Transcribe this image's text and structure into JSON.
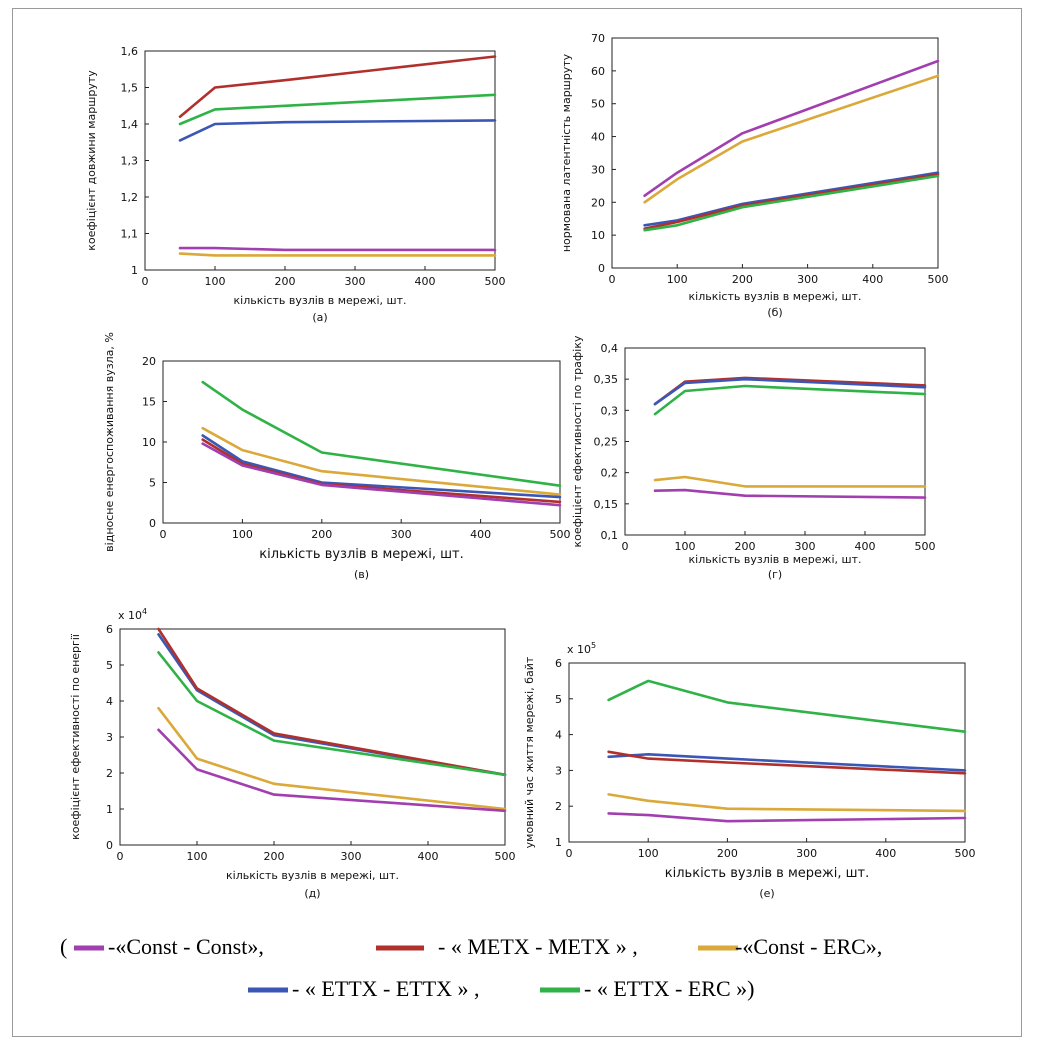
{
  "colors": {
    "Const - Const": "#a23fb0",
    "METX - METX": "#b2302c",
    "Const - ERC": "#dba83a",
    "ETTX - ETTX": "#3b57b5",
    "ETTX - ERC": "#2fb246"
  },
  "legend": {
    "open": "(",
    "items": [
      {
        "key": "Const - Const",
        "text": "-«Const - Const»,"
      },
      {
        "key": "METX - METX",
        "text": "- « METX - METX » ,"
      },
      {
        "key": "Const - ERC",
        "text": "-«Const - ERC»,"
      },
      {
        "key": "ETTX - ETTX",
        "text": "- « ETTX - ETTX » ,"
      },
      {
        "key": "ETTX - ERC",
        "text": "- « ETTX - ERC »)"
      }
    ]
  },
  "chart_data": [
    {
      "type": "line",
      "caption": "(а)",
      "xlabel": "кількість вузлів в мережі, шт.",
      "ylabel": "коефіцієнт довжини маршруту",
      "x_ticks": [
        0,
        100,
        200,
        300,
        400,
        500
      ],
      "y_ticks": [
        "1",
        "1,1",
        "1,2",
        "1,3",
        "1,4",
        "1,5",
        "1,6"
      ],
      "xlim": [
        0,
        500
      ],
      "ylim": [
        1,
        1.6
      ],
      "x": [
        50,
        100,
        200,
        500
      ],
      "series": [
        {
          "key": "METX - METX",
          "values": [
            1.42,
            1.5,
            1.52,
            1.585
          ]
        },
        {
          "key": "ETTX - ERC",
          "values": [
            1.4,
            1.44,
            1.45,
            1.48
          ]
        },
        {
          "key": "ETTX - ETTX",
          "values": [
            1.355,
            1.4,
            1.405,
            1.41
          ]
        },
        {
          "key": "Const - Const",
          "values": [
            1.06,
            1.06,
            1.055,
            1.055
          ]
        },
        {
          "key": "Const - ERC",
          "values": [
            1.045,
            1.04,
            1.04,
            1.04
          ]
        }
      ]
    },
    {
      "type": "line",
      "caption": "(б)",
      "xlabel": "кількість вузлів в мережі, шт.",
      "ylabel": "нормована латентність маршруту",
      "x_ticks": [
        0,
        100,
        200,
        300,
        400,
        500
      ],
      "y_ticks": [
        "0",
        "10",
        "20",
        "30",
        "40",
        "50",
        "60",
        "70"
      ],
      "xlim": [
        0,
        500
      ],
      "ylim": [
        0,
        70
      ],
      "x": [
        50,
        100,
        200,
        500
      ],
      "series": [
        {
          "key": "Const - Const",
          "values": [
            22,
            29,
            41,
            63
          ]
        },
        {
          "key": "Const - ERC",
          "values": [
            20,
            27,
            38.5,
            58.5
          ]
        },
        {
          "key": "ETTX - ETTX",
          "values": [
            13,
            14.5,
            19.5,
            29
          ]
        },
        {
          "key": "METX - METX",
          "values": [
            12,
            14,
            19,
            28.5
          ]
        },
        {
          "key": "ETTX - ERC",
          "values": [
            11.5,
            13,
            18.5,
            28
          ]
        }
      ]
    },
    {
      "type": "line",
      "caption": "(в)",
      "xlabel": "кількість вузлів в мережі, шт.",
      "ylabel": "відносне енергоспоживання вузла, %",
      "x_ticks": [
        0,
        100,
        200,
        300,
        400,
        500
      ],
      "y_ticks": [
        "0",
        "5",
        "10",
        "15",
        "20"
      ],
      "xlim": [
        0,
        500
      ],
      "ylim": [
        0,
        20
      ],
      "x": [
        50,
        100,
        200,
        500
      ],
      "series": [
        {
          "key": "ETTX - ERC",
          "values": [
            17.4,
            14,
            8.7,
            4.6
          ]
        },
        {
          "key": "Const - ERC",
          "values": [
            11.7,
            9,
            6.4,
            3.5
          ]
        },
        {
          "key": "ETTX - ETTX",
          "values": [
            10.8,
            7.6,
            5,
            3.2
          ]
        },
        {
          "key": "METX - METX",
          "values": [
            10.3,
            7.3,
            4.8,
            2.6
          ]
        },
        {
          "key": "Const - Const",
          "values": [
            9.8,
            7.1,
            4.7,
            2.2
          ]
        }
      ]
    },
    {
      "type": "line",
      "caption": "(г)",
      "xlabel": "кількість вузлів в мережі, шт.",
      "ylabel": "коефіцієнт ефективності по трафіку",
      "x_ticks": [
        0,
        100,
        200,
        300,
        400,
        500
      ],
      "y_ticks": [
        "0,1",
        "0,15",
        "0,2",
        "0,25",
        "0,3",
        "0,35",
        "0,4"
      ],
      "xlim": [
        0,
        500
      ],
      "ylim": [
        0.1,
        0.4
      ],
      "x": [
        50,
        100,
        200,
        500
      ],
      "series": [
        {
          "key": "METX - METX",
          "values": [
            0.31,
            0.346,
            0.352,
            0.34
          ]
        },
        {
          "key": "ETTX - ETTX",
          "values": [
            0.31,
            0.344,
            0.35,
            0.337
          ]
        },
        {
          "key": "ETTX - ERC",
          "values": [
            0.294,
            0.331,
            0.339,
            0.326
          ]
        },
        {
          "key": "Const - ERC",
          "values": [
            0.188,
            0.193,
            0.178,
            0.178
          ]
        },
        {
          "key": "Const - Const",
          "values": [
            0.171,
            0.172,
            0.163,
            0.16
          ]
        }
      ]
    },
    {
      "type": "line",
      "caption": "(д)",
      "xlabel": "кількість вузлів в мережі, шт.",
      "ylabel": "коефіцієнт ефективності по енергії",
      "multiplier": "x 10",
      "multiplier_exp": "4",
      "x_ticks": [
        0,
        100,
        200,
        300,
        400,
        500
      ],
      "y_ticks": [
        "0",
        "1",
        "2",
        "3",
        "4",
        "5",
        "6"
      ],
      "xlim": [
        0,
        500
      ],
      "ylim": [
        0,
        6
      ],
      "x": [
        50,
        100,
        200,
        500
      ],
      "series": [
        {
          "key": "ETTX - ETTX",
          "values": [
            5.85,
            4.3,
            3.05,
            1.95
          ]
        },
        {
          "key": "METX - METX",
          "values": [
            6.0,
            4.35,
            3.1,
            1.95
          ]
        },
        {
          "key": "ETTX - ERC",
          "values": [
            5.35,
            4.0,
            2.9,
            1.95
          ]
        },
        {
          "key": "Const - ERC",
          "values": [
            3.8,
            2.4,
            1.7,
            1.0
          ]
        },
        {
          "key": "Const - Const",
          "values": [
            3.2,
            2.1,
            1.4,
            0.95
          ]
        }
      ]
    },
    {
      "type": "line",
      "caption": "(е)",
      "xlabel": "кількість вузлів в мережі, шт.",
      "ylabel": "умовний час життя мережі, байт",
      "multiplier": "x 10",
      "multiplier_exp": "5",
      "x_ticks": [
        0,
        100,
        200,
        300,
        400,
        500
      ],
      "y_ticks": [
        "1",
        "2",
        "3",
        "4",
        "5",
        "6"
      ],
      "xlim": [
        0,
        500
      ],
      "ylim": [
        1,
        6
      ],
      "x": [
        50,
        100,
        200,
        500
      ],
      "series": [
        {
          "key": "ETTX - ERC",
          "values": [
            4.97,
            5.5,
            4.9,
            4.08
          ]
        },
        {
          "key": "ETTX - ETTX",
          "values": [
            3.38,
            3.45,
            3.33,
            3.0
          ]
        },
        {
          "key": "METX - METX",
          "values": [
            3.52,
            3.33,
            3.22,
            2.92
          ]
        },
        {
          "key": "Const - ERC",
          "values": [
            2.33,
            2.15,
            1.93,
            1.87
          ]
        },
        {
          "key": "Const - Const",
          "values": [
            1.8,
            1.75,
            1.58,
            1.67
          ]
        }
      ]
    }
  ]
}
